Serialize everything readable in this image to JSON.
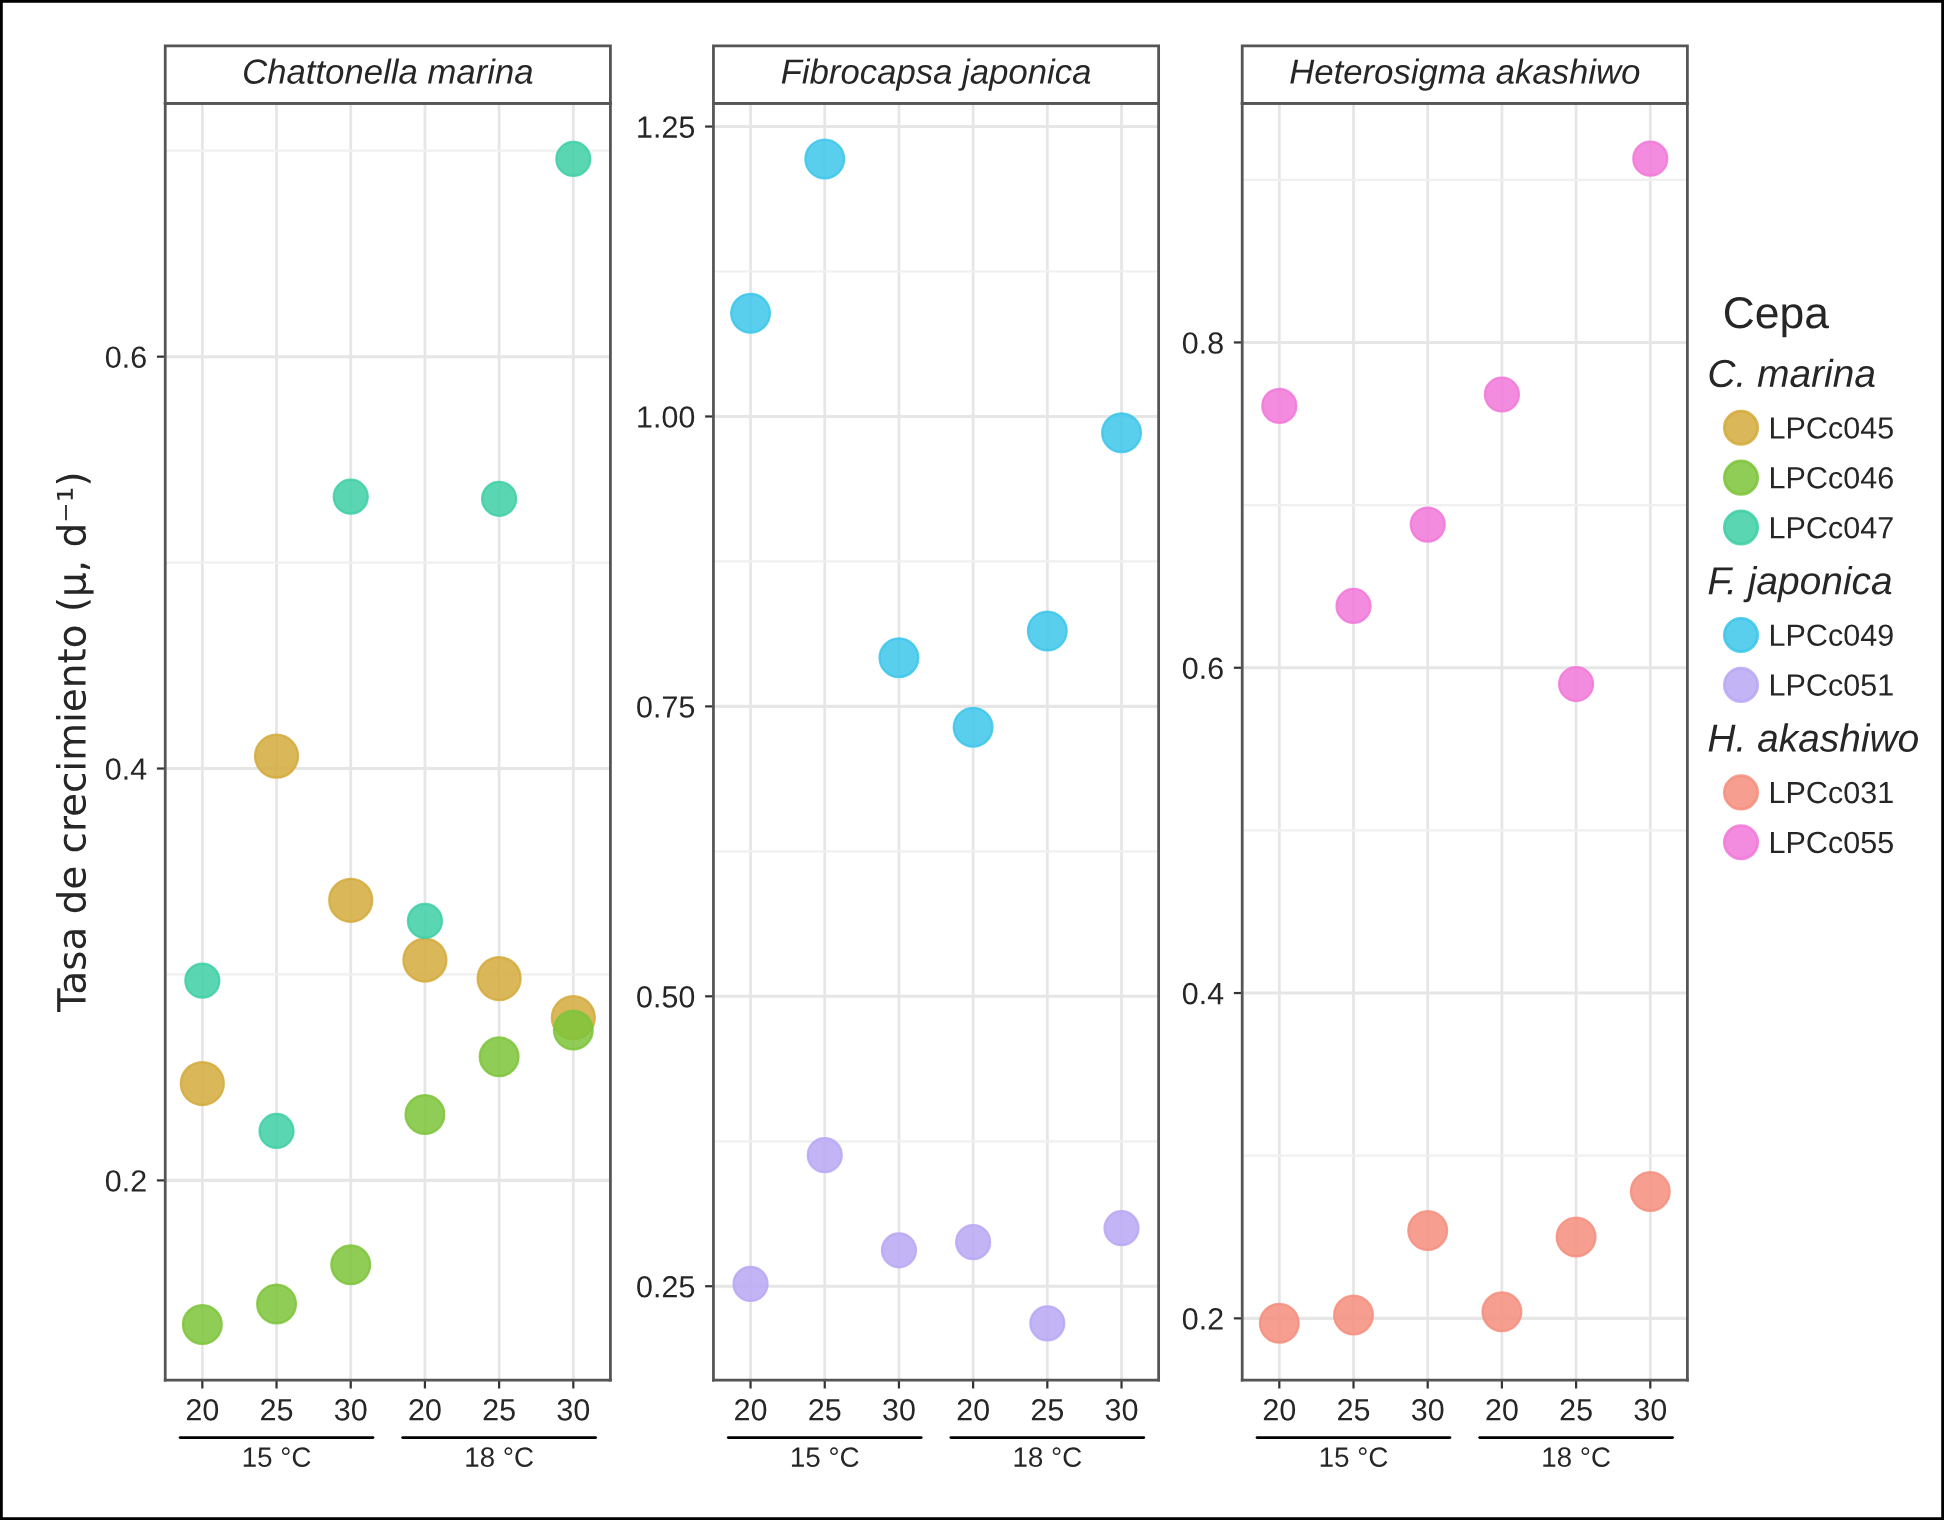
{
  "chart_data": [
    {
      "type": "scatter",
      "title": "Chattonella marina",
      "ylabel": "Tasa de crecimiento (μ, d⁻¹)",
      "categories": [
        "20",
        "25",
        "30",
        "20",
        "25",
        "30"
      ],
      "ylim": [
        0.103,
        0.723
      ],
      "yticks": [
        0.2,
        0.4,
        0.6
      ],
      "grid": true,
      "marker": "circle",
      "legend": "right",
      "legend_title": "Cepa",
      "annotations": [
        "15 °C",
        "18 °C",
        "C. marina"
      ],
      "series": [
        {
          "name": "LPCc045",
          "color": "#d4aa3c",
          "values": [
            0.247,
            0.406,
            0.336,
            0.307,
            0.298,
            0.279
          ]
        },
        {
          "name": "LPCc046",
          "color": "#7cc43a",
          "values": [
            0.13,
            0.14,
            0.159,
            0.232,
            0.26,
            0.273
          ]
        },
        {
          "name": "LPCc047",
          "color": "#3ecfa6",
          "values": [
            0.297,
            0.224,
            0.532,
            0.326,
            0.531,
            0.696
          ]
        }
      ]
    },
    {
      "type": "scatter",
      "title": "Fibrocapsa japonica",
      "categories": [
        "20",
        "25",
        "30",
        "20",
        "25",
        "30"
      ],
      "ylim": [
        0.169,
        1.27
      ],
      "yticks": [
        {
          "value": 0.25,
          "label": "0.25"
        },
        {
          "value": 0.5,
          "label": "0.50"
        },
        {
          "value": 0.75,
          "label": "0.75"
        },
        {
          "value": 1.0,
          "label": "1.00"
        },
        {
          "value": 1.25,
          "label": "1.25"
        }
      ],
      "grid": true,
      "marker": "circle",
      "legend": "right",
      "annotations": [
        "15 °C",
        "18 °C",
        "F. japonica"
      ],
      "series": [
        {
          "name": "LPCc049",
          "color": "#3cc6ea",
          "values": [
            1.089,
            1.222,
            0.792,
            0.732,
            0.815,
            0.986
          ]
        },
        {
          "name": "LPCc051",
          "color": "#b9a7f5",
          "values": [
            0.252,
            0.363,
            0.281,
            0.288,
            0.218,
            0.3
          ]
        }
      ]
    },
    {
      "type": "scatter",
      "title": "Heterosigma akashiwo",
      "categories": [
        "20",
        "25",
        "30",
        "20",
        "25",
        "30"
      ],
      "ylim": [
        0.162,
        0.947
      ],
      "yticks": [
        0.2,
        0.4,
        0.6,
        0.8
      ],
      "grid": true,
      "marker": "circle",
      "legend": "right",
      "annotations": [
        "15 °C",
        "18 °C",
        "H. akashiwo"
      ],
      "series": [
        {
          "name": "LPCc031",
          "color": "#f58e7e",
          "values": [
            0.197,
            0.202,
            0.254,
            0.204,
            0.25,
            0.278
          ]
        },
        {
          "name": "LPCc055",
          "color": "#f178d8",
          "values": [
            0.761,
            0.638,
            0.688,
            0.768,
            0.59,
            0.913
          ]
        }
      ]
    }
  ]
}
